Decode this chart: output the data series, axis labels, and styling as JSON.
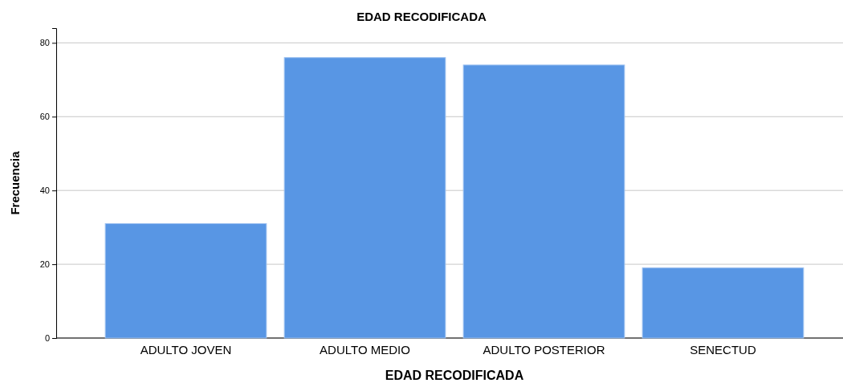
{
  "chart_data": {
    "type": "bar",
    "title": "EDAD RECODIFICADA",
    "xlabel": "EDAD RECODIFICADA",
    "ylabel": "Frecuencia",
    "categories": [
      "ADULTO JOVEN",
      "ADULTO MEDIO",
      "ADULTO POSTERIOR",
      "SENECTUD"
    ],
    "values": [
      31,
      76,
      74,
      19
    ],
    "color": "#5896e4",
    "ylim": [
      0,
      84
    ],
    "yticks": [
      0,
      20,
      40,
      60,
      80
    ],
    "grid": "y"
  }
}
